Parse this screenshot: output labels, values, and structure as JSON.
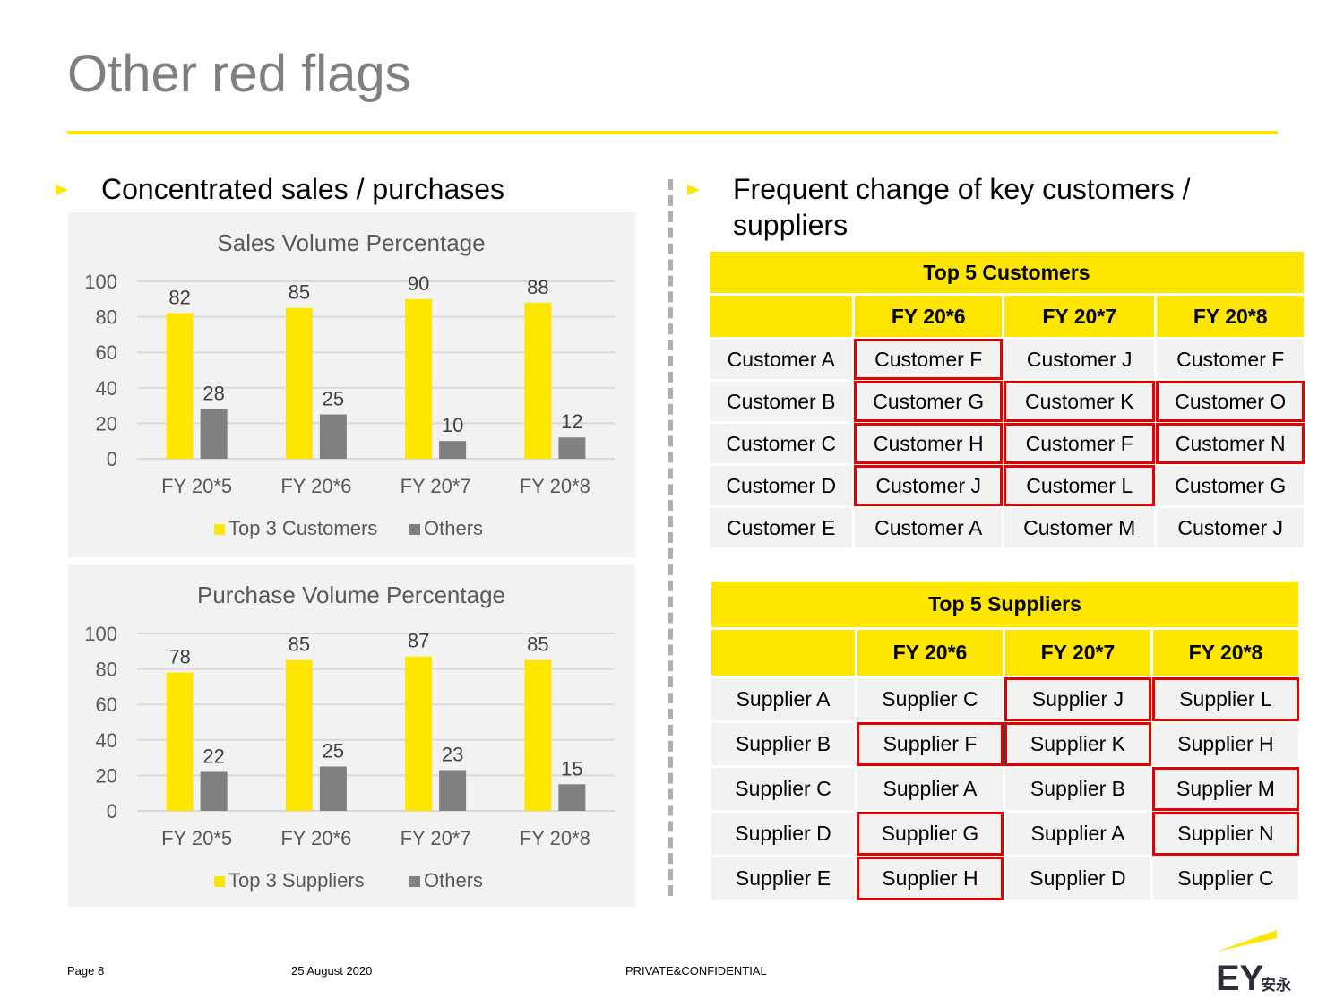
{
  "title": "Other red flags",
  "left": {
    "heading": "Concentrated sales / purchases",
    "bullet_icon": "triangle-right-icon"
  },
  "right": {
    "heading_line1": "Frequent change of key customers /",
    "heading_line2": "suppliers",
    "bullet_icon": "triangle-right-icon"
  },
  "chart_data": [
    {
      "type": "bar",
      "title": "Sales Volume Percentage",
      "categories": [
        "FY 20*5",
        "FY 20*6",
        "FY 20*7",
        "FY 20*8"
      ],
      "series": [
        {
          "name": "Top 3 Customers",
          "values": [
            82,
            85,
            90,
            88
          ],
          "color": "#ffe600"
        },
        {
          "name": "Others",
          "values": [
            28,
            25,
            10,
            12
          ],
          "color": "#808080"
        }
      ],
      "ylim": [
        0,
        100
      ],
      "yticks": [
        "0",
        "20",
        "40",
        "60",
        "80",
        "100"
      ],
      "grid": true,
      "legend": "bottom"
    },
    {
      "type": "bar",
      "title": "Purchase Volume Percentage",
      "categories": [
        "FY 20*5",
        "FY 20*6",
        "FY 20*7",
        "FY 20*8"
      ],
      "series": [
        {
          "name": "Top 3 Suppliers",
          "values": [
            78,
            85,
            87,
            85
          ],
          "color": "#ffe600"
        },
        {
          "name": "Others",
          "values": [
            22,
            25,
            23,
            15
          ],
          "color": "#808080"
        }
      ],
      "ylim": [
        0,
        100
      ],
      "yticks": [
        "0",
        "20",
        "40",
        "60",
        "80",
        "100"
      ],
      "grid": true,
      "legend": "bottom"
    }
  ],
  "customers_table": {
    "title": "Top 5 Customers",
    "headers": [
      "",
      "FY 20*6",
      "FY 20*7",
      "FY 20*8"
    ],
    "rows": [
      [
        "Customer A",
        "Customer F",
        "Customer J",
        "Customer F"
      ],
      [
        "Customer B",
        "Customer G",
        "Customer K",
        "Customer O"
      ],
      [
        "Customer C",
        "Customer H",
        "Customer F",
        "Customer N"
      ],
      [
        "Customer D",
        "Customer J",
        "Customer L",
        "Customer G"
      ],
      [
        "Customer E",
        "Customer A",
        "Customer M",
        "Customer J"
      ]
    ],
    "flagged": [
      [
        0,
        1
      ],
      [
        1,
        1
      ],
      [
        1,
        2
      ],
      [
        1,
        3
      ],
      [
        2,
        1
      ],
      [
        2,
        2
      ],
      [
        2,
        3
      ],
      [
        3,
        1
      ],
      [
        3,
        2
      ]
    ]
  },
  "suppliers_table": {
    "title": "Top 5 Suppliers",
    "headers": [
      "",
      "FY 20*6",
      "FY 20*7",
      "FY 20*8"
    ],
    "rows": [
      [
        "Supplier A",
        "Supplier C",
        "Supplier J",
        "Supplier L"
      ],
      [
        "Supplier B",
        "Supplier F",
        "Supplier K",
        "Supplier H"
      ],
      [
        "Supplier C",
        "Supplier A",
        "Supplier B",
        "Supplier M"
      ],
      [
        "Supplier D",
        "Supplier G",
        "Supplier A",
        "Supplier N"
      ],
      [
        "Supplier E",
        "Supplier H",
        "Supplier D",
        "Supplier C"
      ]
    ],
    "flagged": [
      [
        0,
        2
      ],
      [
        0,
        3
      ],
      [
        1,
        1
      ],
      [
        1,
        2
      ],
      [
        2,
        3
      ],
      [
        3,
        1
      ],
      [
        3,
        3
      ],
      [
        4,
        1
      ]
    ]
  },
  "highlight_color": "#e00000",
  "accent_color": "#ffe600",
  "footer": {
    "page": "Page 8",
    "date": "25 August 2020",
    "confidential": "PRIVATE&CONFIDENTIAL"
  },
  "logo": {
    "text": "EY",
    "chinese": "安永"
  }
}
